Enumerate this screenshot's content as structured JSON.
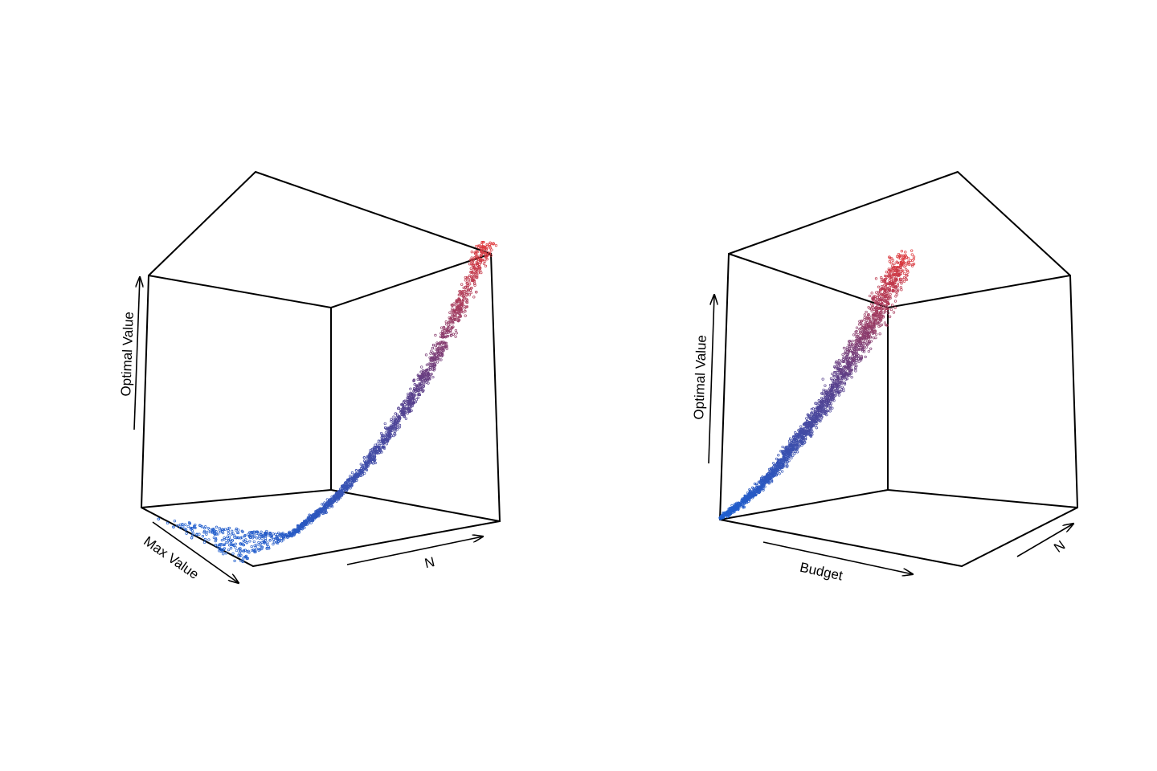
{
  "figure": {
    "description_free": true
  },
  "colors": {
    "low": "#1f5fcf",
    "mid": "#5a3f8a",
    "high": "#e0383a",
    "box": "#000000"
  },
  "chart_data": [
    {
      "type": "scatter",
      "projection": "3d",
      "title": "",
      "xlabel": "N",
      "ylabel": "Max Value",
      "zlabel": "Optimal Value",
      "color_by": "z",
      "color_scale": [
        "#1f5fcf",
        "#5a3f8a",
        "#e0383a"
      ],
      "ranges": {
        "x": [
          0,
          1
        ],
        "y": [
          0,
          1
        ],
        "z": [
          0,
          1
        ]
      },
      "trend": [
        {
          "x": 0.0,
          "y": 0.0,
          "z": 0.0
        },
        {
          "x": 0.1,
          "y": 0.0,
          "z": 0.03
        },
        {
          "x": 0.2,
          "y": 0.0,
          "z": 0.07
        },
        {
          "x": 0.3,
          "y": 0.0,
          "z": 0.12
        },
        {
          "x": 0.4,
          "y": 0.0,
          "z": 0.18
        },
        {
          "x": 0.5,
          "y": 0.0,
          "z": 0.26
        },
        {
          "x": 0.6,
          "y": 0.0,
          "z": 0.36
        },
        {
          "x": 0.7,
          "y": 0.0,
          "z": 0.48
        },
        {
          "x": 0.8,
          "y": 0.0,
          "z": 0.62
        },
        {
          "x": 0.9,
          "y": 0.0,
          "z": 0.8
        },
        {
          "x": 1.0,
          "y": 0.0,
          "z": 1.0
        }
      ]
    },
    {
      "type": "scatter",
      "projection": "3d",
      "title": "",
      "xlabel": "Budget",
      "ylabel": "N",
      "zlabel": "Optimal Value",
      "color_by": "z",
      "color_scale": [
        "#1f5fcf",
        "#5a3f8a",
        "#e0383a"
      ],
      "ranges": {
        "x": [
          0,
          1
        ],
        "y": [
          0,
          1
        ],
        "z": [
          0,
          1
        ]
      },
      "trend": [
        {
          "x": 0.0,
          "y": 0.0,
          "z": 0.0
        },
        {
          "x": 0.1,
          "y": 0.08,
          "z": 0.04
        },
        {
          "x": 0.2,
          "y": 0.16,
          "z": 0.09
        },
        {
          "x": 0.3,
          "y": 0.24,
          "z": 0.16
        },
        {
          "x": 0.4,
          "y": 0.32,
          "z": 0.25
        },
        {
          "x": 0.5,
          "y": 0.4,
          "z": 0.34
        },
        {
          "x": 0.6,
          "y": 0.48,
          "z": 0.45
        },
        {
          "x": 0.7,
          "y": 0.56,
          "z": 0.57
        },
        {
          "x": 0.8,
          "y": 0.64,
          "z": 0.7
        },
        {
          "x": 0.9,
          "y": 0.72,
          "z": 0.84
        },
        {
          "x": 1.0,
          "y": 0.8,
          "z": 1.0
        }
      ]
    }
  ]
}
